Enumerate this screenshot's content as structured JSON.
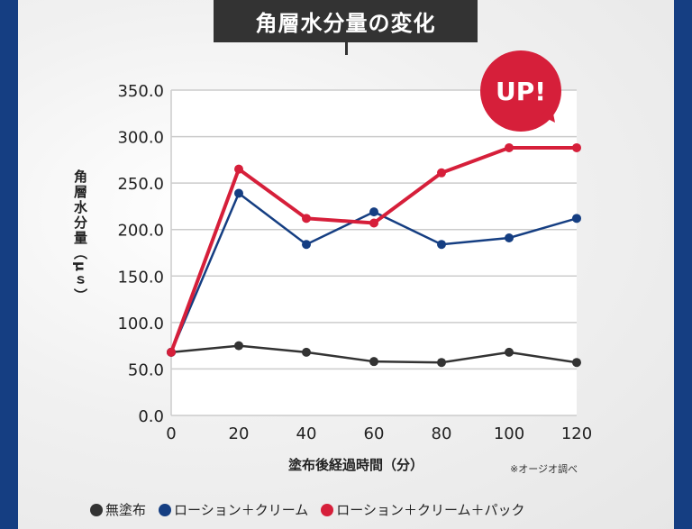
{
  "title": "角層水分量の変化",
  "badge": "UP!",
  "chart_data": {
    "type": "line",
    "title": "角層水分量の変化",
    "xlabel": "塗布後経過時間（分）",
    "ylabel": "角層水分量（μｓ）",
    "x": [
      0,
      20,
      40,
      60,
      80,
      100,
      120
    ],
    "xlim": [
      0,
      120
    ],
    "ylim": [
      0,
      350
    ],
    "yticks": [
      "0.0",
      "50.0",
      "100.0",
      "150.0",
      "200.0",
      "250.0",
      "300.0",
      "350.0"
    ],
    "xticks": [
      "0",
      "20",
      "40",
      "60",
      "80",
      "100",
      "120"
    ],
    "grid": true,
    "legend": "bottom",
    "series": [
      {
        "name": "無塗布",
        "color": "#333333",
        "values": [
          68,
          75,
          68,
          58,
          57,
          68,
          57
        ]
      },
      {
        "name": "ローション＋クリーム",
        "color": "#153e82",
        "values": [
          68,
          239,
          184,
          219,
          184,
          191,
          212
        ]
      },
      {
        "name": "ローション＋クリーム＋パック",
        "color": "#d61f3a",
        "values": [
          68,
          265,
          212,
          207,
          261,
          288,
          288
        ]
      }
    ],
    "annotation": "※オージオ調べ"
  }
}
